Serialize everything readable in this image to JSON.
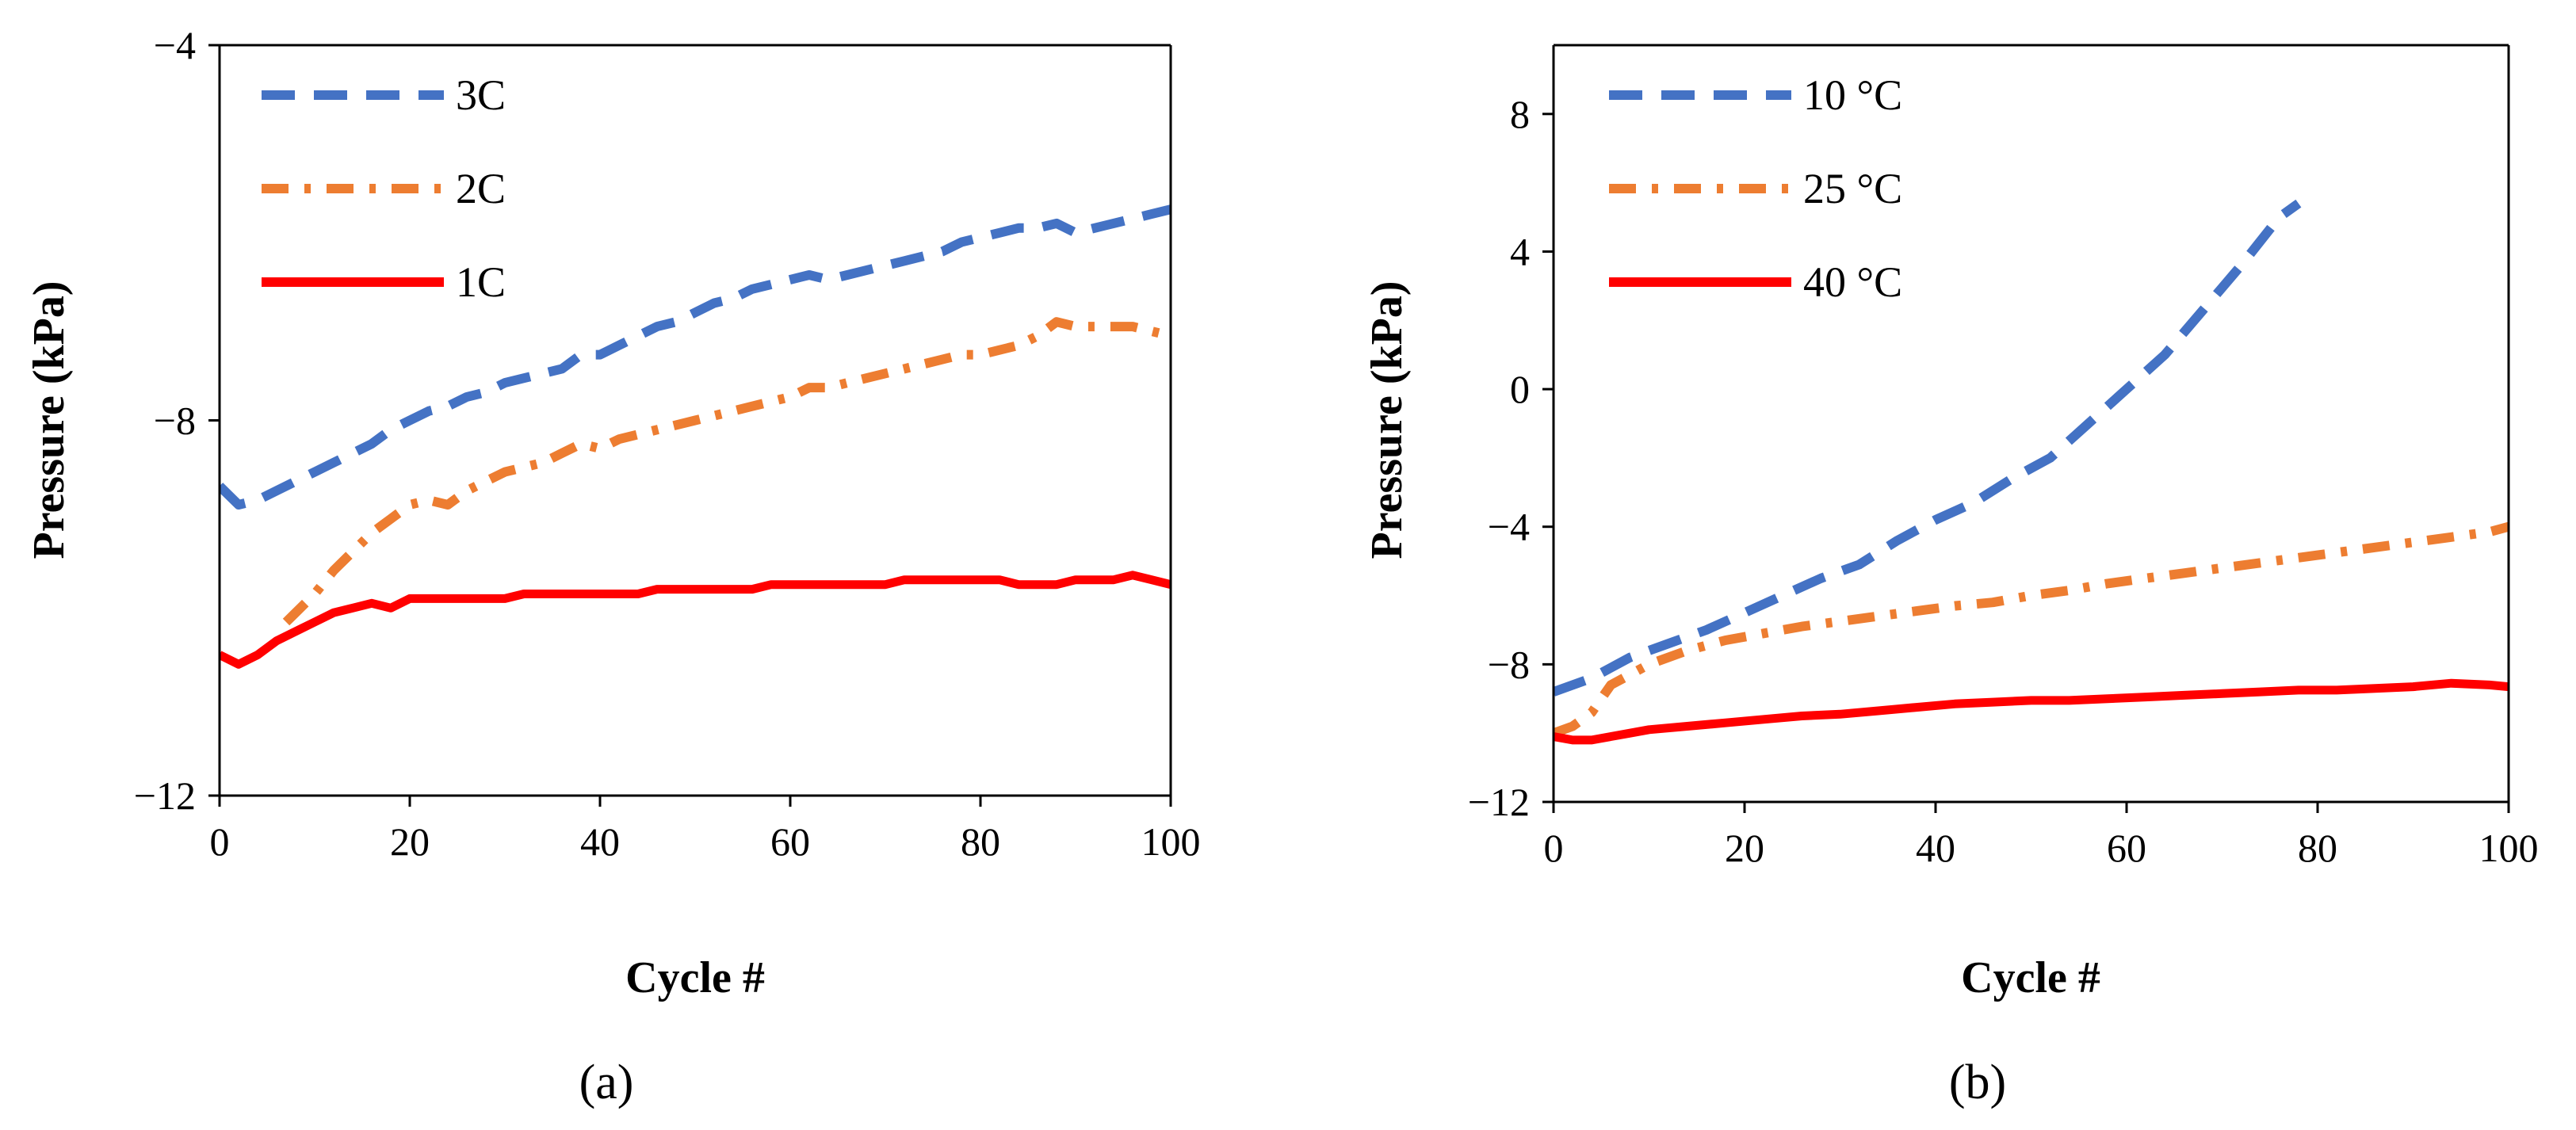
{
  "chart_data": [
    {
      "type": "line",
      "panel": "a",
      "panel_label": "(a)",
      "xlabel": "Cycle #",
      "ylabel": "Pressure (kPa)",
      "xlim": [
        0,
        100
      ],
      "ylim": [
        -12,
        -4
      ],
      "xticks": [
        0,
        20,
        40,
        60,
        80,
        100
      ],
      "yticks": [
        -12,
        -8,
        -4
      ],
      "legend_position": "top-left",
      "series": [
        {
          "name": "3C",
          "color": "#4472C4",
          "style": "dashed",
          "x": [
            0,
            2,
            4,
            6,
            8,
            10,
            12,
            14,
            16,
            18,
            20,
            22,
            24,
            26,
            28,
            30,
            32,
            34,
            36,
            38,
            40,
            42,
            44,
            46,
            48,
            50,
            52,
            54,
            56,
            58,
            60,
            62,
            64,
            66,
            68,
            70,
            72,
            74,
            76,
            78,
            80,
            82,
            84,
            86,
            88,
            90,
            92,
            94,
            96,
            98,
            100
          ],
          "y": [
            -8.7,
            -8.9,
            -8.85,
            -8.75,
            -8.65,
            -8.55,
            -8.45,
            -8.35,
            -8.25,
            -8.1,
            -8.0,
            -7.9,
            -7.85,
            -7.75,
            -7.7,
            -7.6,
            -7.55,
            -7.5,
            -7.45,
            -7.3,
            -7.3,
            -7.2,
            -7.1,
            -7.0,
            -6.95,
            -6.85,
            -6.75,
            -6.7,
            -6.6,
            -6.55,
            -6.5,
            -6.45,
            -6.5,
            -6.45,
            -6.4,
            -6.35,
            -6.3,
            -6.25,
            -6.2,
            -6.1,
            -6.05,
            -6.0,
            -5.95,
            -5.95,
            -5.9,
            -6.0,
            -5.95,
            -5.9,
            -5.85,
            -5.8,
            -5.75
          ]
        },
        {
          "name": "2C",
          "color": "#ED7D31",
          "style": "dash-dot",
          "x": [
            7,
            8,
            10,
            12,
            14,
            16,
            18,
            20,
            22,
            24,
            26,
            28,
            30,
            32,
            34,
            36,
            38,
            40,
            42,
            44,
            46,
            48,
            50,
            52,
            54,
            56,
            58,
            60,
            62,
            64,
            66,
            68,
            70,
            72,
            74,
            76,
            78,
            80,
            82,
            84,
            86,
            88,
            90,
            92,
            94,
            96,
            98,
            100
          ],
          "y": [
            -10.15,
            -10.05,
            -9.85,
            -9.6,
            -9.4,
            -9.2,
            -9.05,
            -8.9,
            -8.85,
            -8.9,
            -8.75,
            -8.65,
            -8.55,
            -8.5,
            -8.45,
            -8.35,
            -8.25,
            -8.3,
            -8.2,
            -8.15,
            -8.1,
            -8.05,
            -8.0,
            -7.95,
            -7.9,
            -7.85,
            -7.8,
            -7.75,
            -7.65,
            -7.65,
            -7.6,
            -7.55,
            -7.5,
            -7.45,
            -7.4,
            -7.35,
            -7.3,
            -7.3,
            -7.25,
            -7.2,
            -7.1,
            -6.95,
            -7.0,
            -7.0,
            -7.0,
            -7.0,
            -7.05,
            -7.1
          ]
        },
        {
          "name": "1C",
          "color": "#FF0000",
          "style": "solid",
          "x": [
            0,
            2,
            4,
            6,
            8,
            10,
            12,
            14,
            16,
            18,
            20,
            22,
            24,
            26,
            28,
            30,
            32,
            34,
            36,
            38,
            40,
            42,
            44,
            46,
            48,
            50,
            52,
            54,
            56,
            58,
            60,
            62,
            64,
            66,
            68,
            70,
            72,
            74,
            76,
            78,
            80,
            82,
            84,
            86,
            88,
            90,
            92,
            94,
            96,
            98,
            100
          ],
          "y": [
            -10.5,
            -10.6,
            -10.5,
            -10.35,
            -10.25,
            -10.15,
            -10.05,
            -10.0,
            -9.95,
            -10.0,
            -9.9,
            -9.9,
            -9.9,
            -9.9,
            -9.9,
            -9.9,
            -9.85,
            -9.85,
            -9.85,
            -9.85,
            -9.85,
            -9.85,
            -9.85,
            -9.8,
            -9.8,
            -9.8,
            -9.8,
            -9.8,
            -9.8,
            -9.75,
            -9.75,
            -9.75,
            -9.75,
            -9.75,
            -9.75,
            -9.75,
            -9.7,
            -9.7,
            -9.7,
            -9.7,
            -9.7,
            -9.7,
            -9.75,
            -9.75,
            -9.75,
            -9.7,
            -9.7,
            -9.7,
            -9.65,
            -9.7,
            -9.75
          ]
        }
      ]
    },
    {
      "type": "line",
      "panel": "b",
      "panel_label": "(b)",
      "xlabel": "Cycle #",
      "ylabel": "Pressure (kPa)",
      "xlim": [
        0,
        100
      ],
      "ylim": [
        -12,
        10
      ],
      "xticks": [
        0,
        20,
        40,
        60,
        80,
        100
      ],
      "yticks": [
        -12,
        -8,
        -4,
        0,
        4,
        8
      ],
      "legend_position": "top-left",
      "series": [
        {
          "name": "10 °C",
          "color": "#4472C4",
          "style": "dashed",
          "x": [
            0,
            4,
            8,
            12,
            16,
            20,
            24,
            28,
            32,
            36,
            40,
            44,
            48,
            52,
            56,
            60,
            64,
            68,
            72,
            76,
            78
          ],
          "y": [
            -8.8,
            -8.4,
            -7.8,
            -7.4,
            -7.0,
            -6.5,
            -6.0,
            -5.5,
            -5.1,
            -4.4,
            -3.8,
            -3.3,
            -2.6,
            -2.0,
            -1.0,
            0.0,
            1.0,
            2.3,
            3.6,
            5.0,
            5.4
          ]
        },
        {
          "name": "25 °C",
          "color": "#ED7D31",
          "style": "dash-dot",
          "x": [
            0,
            2,
            4,
            6,
            10,
            14,
            18,
            22,
            26,
            30,
            34,
            38,
            42,
            46,
            50,
            54,
            58,
            62,
            66,
            70,
            74,
            78,
            82,
            86,
            90,
            94,
            98,
            100
          ],
          "y": [
            -10.0,
            -9.8,
            -9.4,
            -8.6,
            -8.0,
            -7.6,
            -7.3,
            -7.1,
            -6.9,
            -6.75,
            -6.6,
            -6.45,
            -6.3,
            -6.2,
            -6.0,
            -5.85,
            -5.65,
            -5.5,
            -5.35,
            -5.2,
            -5.05,
            -4.9,
            -4.75,
            -4.6,
            -4.45,
            -4.3,
            -4.15,
            -4.0
          ]
        },
        {
          "name": "40 °C",
          "color": "#FF0000",
          "style": "solid",
          "x": [
            0,
            2,
            4,
            6,
            8,
            10,
            14,
            18,
            22,
            26,
            30,
            34,
            38,
            42,
            46,
            50,
            54,
            58,
            62,
            66,
            70,
            74,
            78,
            82,
            86,
            90,
            94,
            98,
            100
          ],
          "y": [
            -10.1,
            -10.2,
            -10.2,
            -10.1,
            -10.0,
            -9.9,
            -9.8,
            -9.7,
            -9.6,
            -9.5,
            -9.45,
            -9.35,
            -9.25,
            -9.15,
            -9.1,
            -9.05,
            -9.05,
            -9.0,
            -8.95,
            -8.9,
            -8.85,
            -8.8,
            -8.75,
            -8.75,
            -8.7,
            -8.65,
            -8.55,
            -8.6,
            -8.65
          ]
        }
      ]
    }
  ]
}
